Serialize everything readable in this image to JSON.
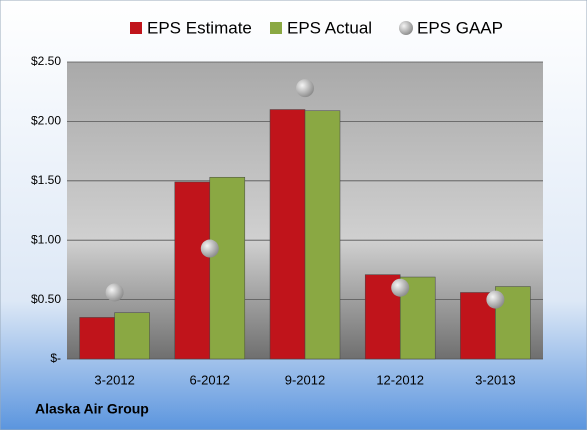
{
  "chart_data": {
    "type": "bar",
    "company": "Alaska Air Group",
    "categories": [
      "3-2012",
      "6-2012",
      "9-2012",
      "12-2012",
      "3-2013"
    ],
    "series": [
      {
        "name": "EPS Estimate",
        "color": "#c0141b",
        "values": [
          0.35,
          1.49,
          2.1,
          0.71,
          0.56
        ]
      },
      {
        "name": "EPS Actual",
        "color": "#8aa843",
        "values": [
          0.39,
          1.53,
          2.09,
          0.69,
          0.61
        ]
      },
      {
        "name": "EPS GAAP",
        "color": "#a6a6a6",
        "type": "scatter",
        "values": [
          0.56,
          0.93,
          2.28,
          0.6,
          0.5
        ]
      }
    ],
    "ylim": [
      0,
      2.5
    ],
    "yticks": [
      {
        "value": 0,
        "label": "$-"
      },
      {
        "value": 0.5,
        "label": "$0.50"
      },
      {
        "value": 1,
        "label": "$1.00"
      },
      {
        "value": 1.5,
        "label": "$1.50"
      },
      {
        "value": 2,
        "label": "$2.00"
      },
      {
        "value": 2.5,
        "label": "$2.50"
      }
    ],
    "grid": true
  }
}
